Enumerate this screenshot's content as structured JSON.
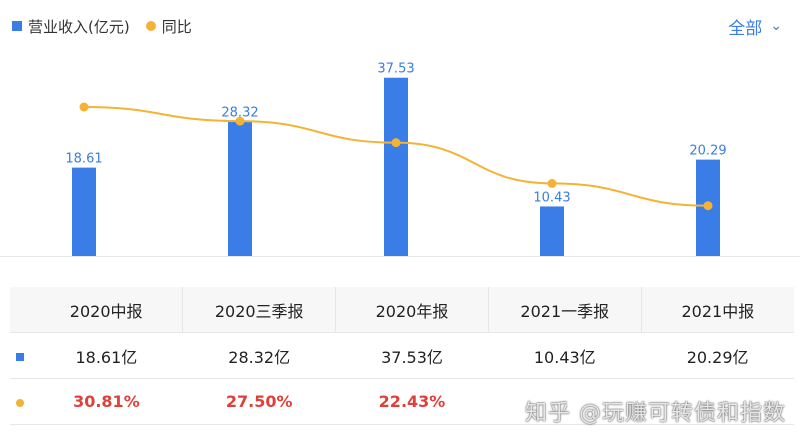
{
  "legend": {
    "bar_label": "营业收入(亿元)",
    "line_label": "同比",
    "bar_icon": "square-icon",
    "line_icon": "dot-icon"
  },
  "filter": {
    "label": "全部",
    "icon": "chevron-down-icon"
  },
  "colors": {
    "bar": "#3a7de6",
    "line": "#f5b335",
    "pct_text": "#e0403a",
    "accent": "#3a7de6"
  },
  "chart_data": {
    "type": "bar",
    "categories": [
      "2020中报",
      "2020三季报",
      "2020年报",
      "2021一季报",
      "2021中报"
    ],
    "series": [
      {
        "name": "营业收入(亿元)",
        "type": "bar",
        "values": [
          18.61,
          28.32,
          37.53,
          10.43,
          20.29
        ],
        "labels": [
          "18.61",
          "28.32",
          "37.53",
          "10.43",
          "20.29"
        ]
      },
      {
        "name": "同比",
        "type": "line",
        "values": [
          30.81,
          27.5,
          22.43,
          12.85,
          7.6
        ]
      }
    ],
    "legend_position": "top-left",
    "grid": false
  },
  "table": {
    "headers": [
      "2020中报",
      "2020三季报",
      "2020年报",
      "2021一季报",
      "2021中报"
    ],
    "revenue": [
      "18.61亿",
      "28.32亿",
      "37.53亿",
      "10.43亿",
      "20.29亿"
    ],
    "yoy": [
      "30.81%",
      "27.50%",
      "22.43%",
      "",
      ""
    ]
  },
  "watermark": "知乎 @玩赚可转债和指数"
}
